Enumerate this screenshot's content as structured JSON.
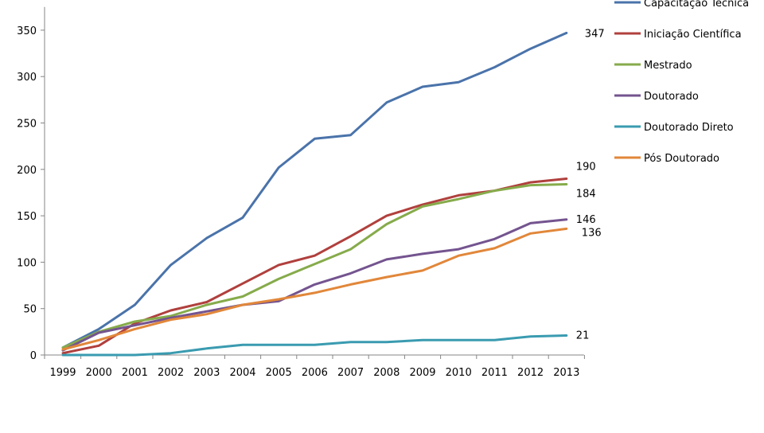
{
  "chart_data": {
    "type": "line",
    "title": "",
    "xlabel": "",
    "ylabel": "",
    "ylim": [
      0,
      375
    ],
    "yticks": [
      0,
      50,
      100,
      150,
      200,
      250,
      300,
      350
    ],
    "categories": [
      "1999",
      "2000",
      "2001",
      "2002",
      "2003",
      "2004",
      "2005",
      "2006",
      "2007",
      "2008",
      "2009",
      "2010",
      "2011",
      "2012",
      "2013"
    ],
    "legend_position": "right",
    "series": [
      {
        "name": "Capacitação Técnica",
        "color": "#4A73AA",
        "end_label": "347",
        "values": [
          8,
          28,
          54,
          97,
          126,
          148,
          202,
          233,
          237,
          272,
          289,
          294,
          310,
          330,
          347
        ]
      },
      {
        "name": "Iniciação Científica",
        "color": "#B0403D",
        "end_label": "190",
        "values": [
          2,
          10,
          34,
          48,
          57,
          77,
          97,
          107,
          128,
          150,
          162,
          172,
          177,
          186,
          190
        ]
      },
      {
        "name": "Mestrado",
        "color": "#86AB4B",
        "end_label": "184",
        "values": [
          8,
          25,
          36,
          42,
          54,
          63,
          82,
          98,
          114,
          141,
          160,
          168,
          177,
          183,
          184
        ]
      },
      {
        "name": "Doutorado",
        "color": "#74548F",
        "end_label": "146",
        "values": [
          5,
          24,
          32,
          40,
          47,
          54,
          58,
          76,
          88,
          103,
          109,
          114,
          125,
          142,
          146
        ]
      },
      {
        "name": "Doutorado Direto",
        "color": "#3A9BB0",
        "end_label": "21",
        "values": [
          0,
          0,
          0,
          2,
          7,
          11,
          11,
          11,
          14,
          14,
          16,
          16,
          16,
          20,
          21
        ]
      },
      {
        "name": "Pós Doutorado",
        "color": "#E1873A",
        "end_label": "136",
        "values": [
          6,
          16,
          28,
          38,
          44,
          54,
          60,
          67,
          76,
          84,
          91,
          107,
          115,
          131,
          136
        ]
      }
    ]
  }
}
